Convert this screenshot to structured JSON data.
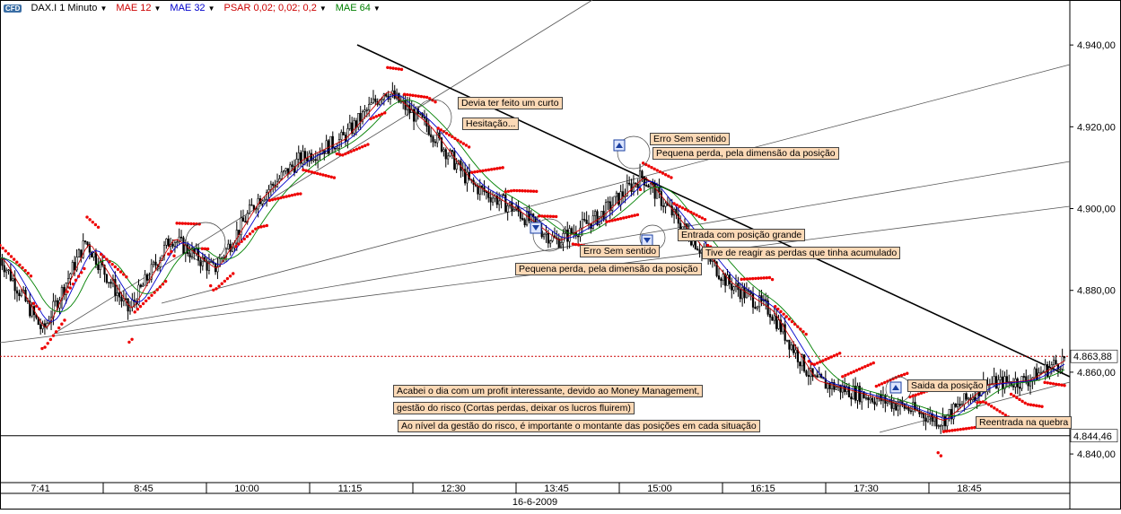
{
  "toolbar": {
    "badge": "CFD",
    "symbol": "DAX.I 1 Minuto",
    "indicators": [
      {
        "label": "MAE 12",
        "color": "#cc0000"
      },
      {
        "label": "MAE 32",
        "color": "#0000cc"
      },
      {
        "label": "PSAR 0,02; 0,02; 0,2",
        "color": "#cc0000"
      },
      {
        "label": "MAE 64",
        "color": "#008000"
      }
    ]
  },
  "chart_data": {
    "type": "candlestick",
    "title": "DAX.I 1 Minuto",
    "date_label": "16-6-2009",
    "x_tick_labels": [
      "7:41",
      "8:45",
      "10:00",
      "11:15",
      "12:30",
      "13:45",
      "15:00",
      "16:15",
      "17:30",
      "18:45"
    ],
    "y_tick_labels": [
      "4.940,00",
      "4.920,00",
      "4.900,00",
      "4.880,00",
      "4.860,00",
      "4.840,00"
    ],
    "y_ticks": [
      4940,
      4920,
      4900,
      4880,
      4860,
      4840
    ],
    "ylim": [
      4833,
      4951
    ],
    "current_price": 4863.88,
    "current_price_label": "4.863,88",
    "reference_price": 4844.46,
    "reference_price_label": "4.844,46",
    "price_path_x": [
      0,
      4,
      8,
      12,
      16,
      20,
      24,
      28,
      32,
      36,
      40,
      44,
      48,
      52,
      56,
      60,
      64,
      68,
      72,
      76,
      80,
      84,
      88,
      92,
      96,
      100
    ],
    "price_path_y": [
      4888,
      4870,
      4892,
      4875,
      4893,
      4885,
      4902,
      4912,
      4917,
      4929,
      4920,
      4906,
      4900,
      4892,
      4898,
      4908,
      4895,
      4882,
      4875,
      4858,
      4855,
      4852,
      4848,
      4857,
      4858,
      4864
    ],
    "ma_colors": {
      "mae12": "#cc0000",
      "mae32": "#0000cc",
      "mae64": "#008000",
      "psar": "#ee0000"
    },
    "annotations": [
      "Devia ter feito um curto",
      "Hesitação...",
      "Erro Sem sentido",
      "Pequena perda, pela dimensão da posição",
      "Entrada com posição grande",
      "Tive de reagir as perdas que tinha acumulado",
      "Erro Sem sentido",
      "Pequena perda, pela dimensão da posição",
      "Acabei o dia com um profit interessante, devido ao Money Management,",
      "gestão do risco (Cortas perdas, deixar os lucros fluirem)",
      "Ao nível da gestão do risco, é importante o montante das posições em cada situação",
      "Saida da posição",
      "Reentrada na quebra"
    ]
  }
}
